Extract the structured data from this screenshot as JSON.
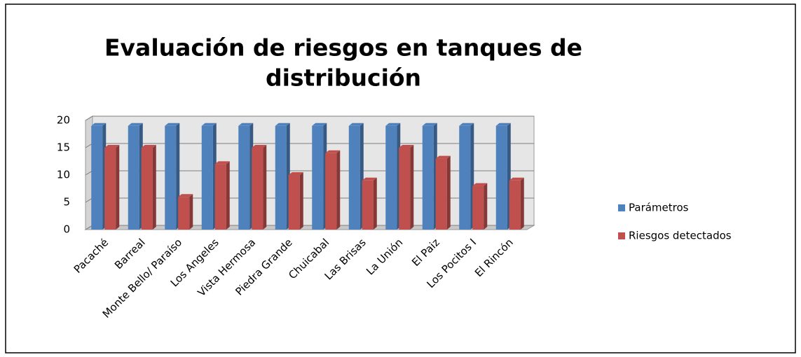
{
  "chart_data": {
    "type": "bar",
    "title": [
      "Evaluación de riesgos en tanques de",
      "distribución"
    ],
    "categories": [
      "Pacaché",
      "Barreal",
      "Monte Bello/ Paraíso",
      "Los Angeles",
      "Vista Hermosa",
      "Piedra Grande",
      "Chuicabal",
      "Las Brisas",
      "La Unión",
      "El Paiz",
      "Los Pocitos I",
      "El Rincón"
    ],
    "series": [
      {
        "name": "Parámetros",
        "color": "#4f81bd",
        "values": [
          19,
          19,
          19,
          19,
          19,
          19,
          19,
          19,
          19,
          19,
          19,
          19
        ]
      },
      {
        "name": "Riesgos detectados",
        "color": "#c0504d",
        "values": [
          15,
          15,
          6,
          12,
          15,
          10,
          14,
          9,
          15,
          13,
          8,
          9
        ]
      }
    ],
    "ylim": [
      0,
      20
    ],
    "yticks": [
      0,
      5,
      10,
      15,
      20
    ],
    "grid": true,
    "legend": "right"
  }
}
